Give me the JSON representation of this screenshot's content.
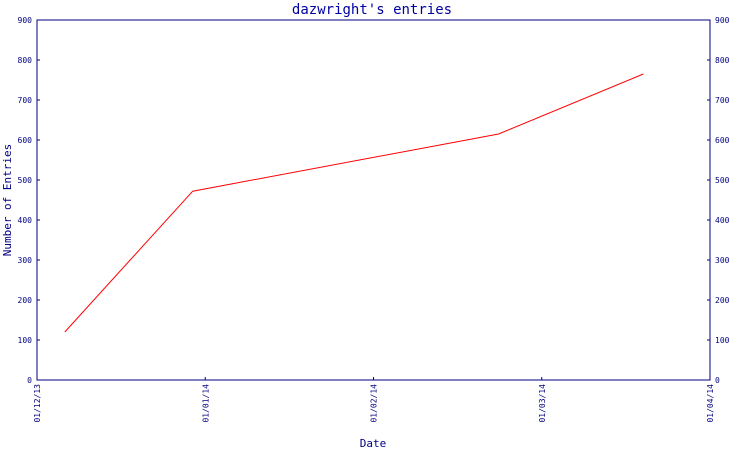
{
  "chart_data": {
    "type": "line",
    "title": "dazwright's entries",
    "xlabel": "Date",
    "ylabel": "Number of Entries",
    "x_ticks": [
      "01/12/13",
      "01/01/14",
      "01/02/14",
      "01/03/14",
      "01/04/14"
    ],
    "y_ticks": [
      0,
      100,
      200,
      300,
      400,
      500,
      600,
      700,
      800,
      900
    ],
    "ylim": [
      0,
      900
    ],
    "xlim": [
      "2013-12-01",
      "2014-04-01"
    ],
    "grid": false,
    "dual_y_axis": true,
    "series": [
      {
        "color": "#ff0000",
        "points": [
          {
            "x": "2013-12-06",
            "y": 120
          },
          {
            "x": "2013-12-29",
            "y": 472
          },
          {
            "x": "2014-02-22",
            "y": 615
          },
          {
            "x": "2014-03-20",
            "y": 765
          }
        ]
      }
    ]
  },
  "colors": {
    "axis": "#000080",
    "title": "#0000a0",
    "line": "#ff0000",
    "background": "#ffffff"
  }
}
